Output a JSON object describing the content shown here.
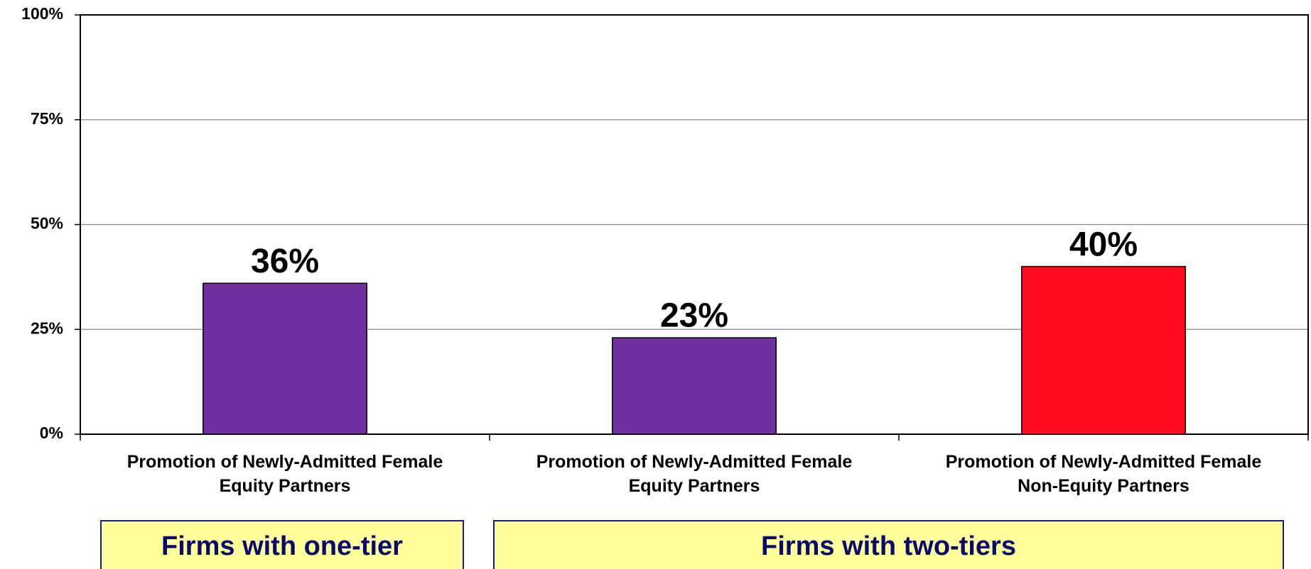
{
  "chart_data": {
    "type": "bar",
    "categories": [
      "Promotion of Newly-Admitted Female\nEquity Partners",
      "Promotion of Newly-Admitted Female\nEquity Partners",
      "Promotion of Newly-Admitted Female\nNon-Equity Partners"
    ],
    "values": [
      36,
      23,
      40
    ],
    "value_labels": [
      "36%",
      "23%",
      "40%"
    ],
    "colors": [
      "#7030a0",
      "#7030a0",
      "#ff0a1e"
    ],
    "ylim": [
      0,
      100
    ],
    "yticks": [
      {
        "value": 0,
        "label": "0%"
      },
      {
        "value": 25,
        "label": "25%"
      },
      {
        "value": 50,
        "label": "50%"
      },
      {
        "value": 75,
        "label": "75%"
      },
      {
        "value": 100,
        "label": "100%"
      }
    ],
    "grid": true,
    "groups": [
      "Firms with one-tier",
      "Firms with two-tiers"
    ]
  }
}
